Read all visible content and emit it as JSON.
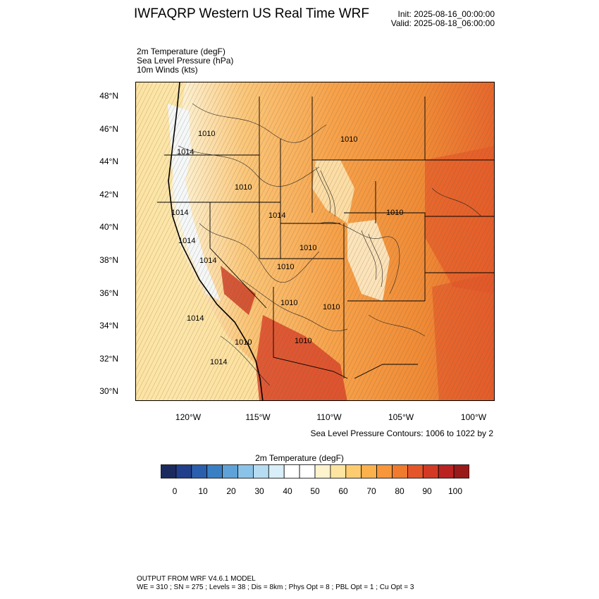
{
  "header": {
    "title": "IWFAQRP Western US Real Time WRF",
    "init": "Init: 2025-08-16_00:00:00",
    "valid": "Valid: 2025-08-18_06:00:00"
  },
  "fields": {
    "temp": "2m Temperature   (degF)",
    "slp": "Sea Level Pressure   (hPa)",
    "wind": "10m Winds   (kts)"
  },
  "map": {
    "lat_labels": [
      "48°N",
      "46°N",
      "44°N",
      "42°N",
      "40°N",
      "38°N",
      "36°N",
      "34°N",
      "32°N",
      "30°N"
    ],
    "lon_labels": [
      "120°W",
      "115°W",
      "110°W",
      "105°W",
      "100°W"
    ],
    "isobar_labels": [
      "1010",
      "1014",
      "1014",
      "1014",
      "1010",
      "1010",
      "1014",
      "1010",
      "1014",
      "1010",
      "1014",
      "1014",
      "1010",
      "1010",
      "1010",
      "1010",
      "1010"
    ],
    "slp_note": "Sea Level Pressure Contours: 1006 to 1022 by 2"
  },
  "colorbar": {
    "title": "2m Temperature  (degF)",
    "labels": [
      "0",
      "10",
      "20",
      "30",
      "40",
      "50",
      "60",
      "70",
      "80",
      "90",
      "100"
    ],
    "colors": [
      "#1b2a5e",
      "#213f8a",
      "#2a5fae",
      "#3a7fc4",
      "#5ea2d8",
      "#8bc3e8",
      "#b6dcf2",
      "#d8eef8",
      "#ffffff",
      "#ffffff",
      "#fdf3cc",
      "#fde4a0",
      "#fdcc70",
      "#fbb14c",
      "#f7963a",
      "#f07a2e",
      "#e4562a",
      "#d33a25",
      "#bb2323",
      "#9a1a1a"
    ]
  },
  "footer": {
    "line1": "OUTPUT FROM WRF V4.6.1 MODEL",
    "line2": "WE = 310 ; SN = 275 ; Levels = 38 ; Dis = 8km ; Phys Opt = 8 ; PBL Opt = 1 ; Cu Opt = 3"
  }
}
